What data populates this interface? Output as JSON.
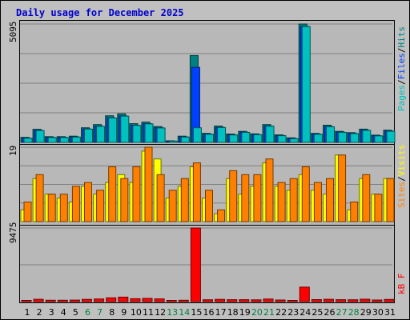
{
  "title": "Daily usage for December 2025",
  "colors": {
    "pages": "#00c0c0",
    "files": "#0040ff",
    "hits": "#008080",
    "sites": "#ff8000",
    "visits": "#ffff00",
    "kbytes": "#ff0000",
    "weekend_day_label": "#008040",
    "weekday_label": "#000000",
    "legend_sep": "#000000"
  },
  "legends": {
    "top": [
      {
        "label": "Pages",
        "color_key": "pages"
      },
      {
        "label": "/"
      },
      {
        "label": "Files",
        "color_key": "files"
      },
      {
        "label": "/"
      },
      {
        "label": "Hits",
        "color_key": "hits"
      }
    ],
    "middle": [
      {
        "label": "Sites",
        "color_key": "sites"
      },
      {
        "label": "/"
      },
      {
        "label": "Visits",
        "color_key": "visits"
      }
    ],
    "bottom": [
      {
        "label": "kB F",
        "color_key": "kbytes"
      }
    ]
  },
  "chart_data": [
    {
      "type": "bar",
      "name": "hits-files-pages",
      "ymax_label": "5095",
      "ylim": [
        0,
        5095
      ],
      "gridlines": 4,
      "categories": [
        "1",
        "2",
        "3",
        "4",
        "5",
        "6",
        "7",
        "8",
        "9",
        "10",
        "11",
        "12",
        "13",
        "14",
        "15",
        "16",
        "17",
        "18",
        "19",
        "20",
        "21",
        "22",
        "23",
        "24",
        "25",
        "26",
        "27",
        "28",
        "29",
        "30",
        "31"
      ],
      "series": [
        {
          "name": "Hits",
          "color_key": "hits",
          "values": [
            217,
            565,
            248,
            248,
            270,
            629,
            766,
            1147,
            1228,
            804,
            875,
            680,
            70,
            270,
            3740,
            389,
            704,
            363,
            476,
            370,
            769,
            324,
            196,
            5095,
            389,
            739,
            476,
            421,
            573,
            312,
            527
          ]
        },
        {
          "name": "Files",
          "color_key": "files",
          "values": [
            190,
            520,
            220,
            220,
            240,
            580,
            700,
            1060,
            1140,
            740,
            810,
            630,
            60,
            240,
            3230,
            360,
            650,
            330,
            440,
            340,
            710,
            300,
            170,
            4990,
            360,
            680,
            440,
            390,
            530,
            290,
            490
          ]
        },
        {
          "name": "Pages",
          "color_key": "pages",
          "values": [
            180,
            510,
            210,
            210,
            230,
            570,
            690,
            1050,
            1130,
            730,
            800,
            620,
            55,
            230,
            630,
            350,
            640,
            320,
            430,
            330,
            700,
            290,
            160,
            4980,
            350,
            670,
            430,
            380,
            520,
            280,
            480
          ]
        }
      ]
    },
    {
      "type": "bar",
      "name": "visits-sites",
      "ymax_label": "19",
      "ylim": [
        0,
        19
      ],
      "gridlines": 4,
      "categories": [
        "1",
        "2",
        "3",
        "4",
        "5",
        "6",
        "7",
        "8",
        "9",
        "10",
        "11",
        "12",
        "13",
        "14",
        "15",
        "16",
        "17",
        "18",
        "19",
        "20",
        "21",
        "22",
        "23",
        "24",
        "25",
        "26",
        "27",
        "28",
        "29",
        "30",
        "31"
      ],
      "series": [
        {
          "name": "Visits",
          "color_key": "visits",
          "values": [
            3,
            11,
            7,
            6,
            5,
            9,
            7,
            10,
            12,
            10,
            18,
            16,
            6,
            9,
            14,
            6,
            2,
            11,
            7,
            9,
            15,
            9,
            8,
            12,
            8,
            7,
            17,
            3,
            11,
            7,
            11
          ]
        },
        {
          "name": "Sites",
          "color_key": "sites",
          "values": [
            5,
            12,
            7,
            7,
            9,
            10,
            8,
            14,
            11,
            14,
            19,
            12,
            8,
            11,
            15,
            8,
            3,
            13,
            12,
            12,
            16,
            10,
            11,
            14,
            10,
            11,
            17,
            5,
            12,
            7,
            11
          ]
        }
      ]
    },
    {
      "type": "bar",
      "name": "kbytes",
      "ymax_label": "9475",
      "ylim": [
        0,
        9475
      ],
      "gridlines": 2,
      "categories": [
        "1",
        "2",
        "3",
        "4",
        "5",
        "6",
        "7",
        "8",
        "9",
        "10",
        "11",
        "12",
        "13",
        "14",
        "15",
        "16",
        "17",
        "18",
        "19",
        "20",
        "21",
        "22",
        "23",
        "24",
        "25",
        "26",
        "27",
        "28",
        "29",
        "30",
        "31"
      ],
      "series": [
        {
          "name": "kB F",
          "color_key": "kbytes",
          "values": [
            100,
            300,
            170,
            170,
            200,
            290,
            340,
            480,
            580,
            370,
            410,
            350,
            70,
            170,
            9475,
            240,
            290,
            250,
            250,
            230,
            330,
            210,
            140,
            1860,
            260,
            300,
            250,
            240,
            310,
            210,
            280
          ]
        }
      ]
    }
  ],
  "day_labels": [
    {
      "text": "1",
      "color_key": "weekday_label"
    },
    {
      "text": "2",
      "color_key": "weekday_label"
    },
    {
      "text": "3",
      "color_key": "weekday_label"
    },
    {
      "text": "4",
      "color_key": "weekday_label"
    },
    {
      "text": "5",
      "color_key": "weekday_label"
    },
    {
      "text": "6",
      "color_key": "weekend_day_label"
    },
    {
      "text": "7",
      "color_key": "weekend_day_label"
    },
    {
      "text": "8",
      "color_key": "weekday_label"
    },
    {
      "text": "9",
      "color_key": "weekday_label"
    },
    {
      "text": "10",
      "color_key": "weekday_label"
    },
    {
      "text": "11",
      "color_key": "weekday_label"
    },
    {
      "text": "12",
      "color_key": "weekday_label"
    },
    {
      "text": "13",
      "color_key": "weekend_day_label"
    },
    {
      "text": "14",
      "color_key": "weekend_day_label"
    },
    {
      "text": "15",
      "color_key": "weekday_label"
    },
    {
      "text": "16",
      "color_key": "weekday_label"
    },
    {
      "text": "17",
      "color_key": "weekday_label"
    },
    {
      "text": "18",
      "color_key": "weekday_label"
    },
    {
      "text": "19",
      "color_key": "weekday_label"
    },
    {
      "text": "20",
      "color_key": "weekend_day_label"
    },
    {
      "text": "21",
      "color_key": "weekend_day_label"
    },
    {
      "text": "22",
      "color_key": "weekday_label"
    },
    {
      "text": "23",
      "color_key": "weekday_label"
    },
    {
      "text": "24",
      "color_key": "weekday_label"
    },
    {
      "text": "25",
      "color_key": "weekday_label"
    },
    {
      "text": "26",
      "color_key": "weekday_label"
    },
    {
      "text": "27",
      "color_key": "weekend_day_label"
    },
    {
      "text": "28",
      "color_key": "weekend_day_label"
    },
    {
      "text": "29",
      "color_key": "weekday_label"
    },
    {
      "text": "30",
      "color_key": "weekday_label"
    },
    {
      "text": "31",
      "color_key": "weekday_label"
    }
  ]
}
